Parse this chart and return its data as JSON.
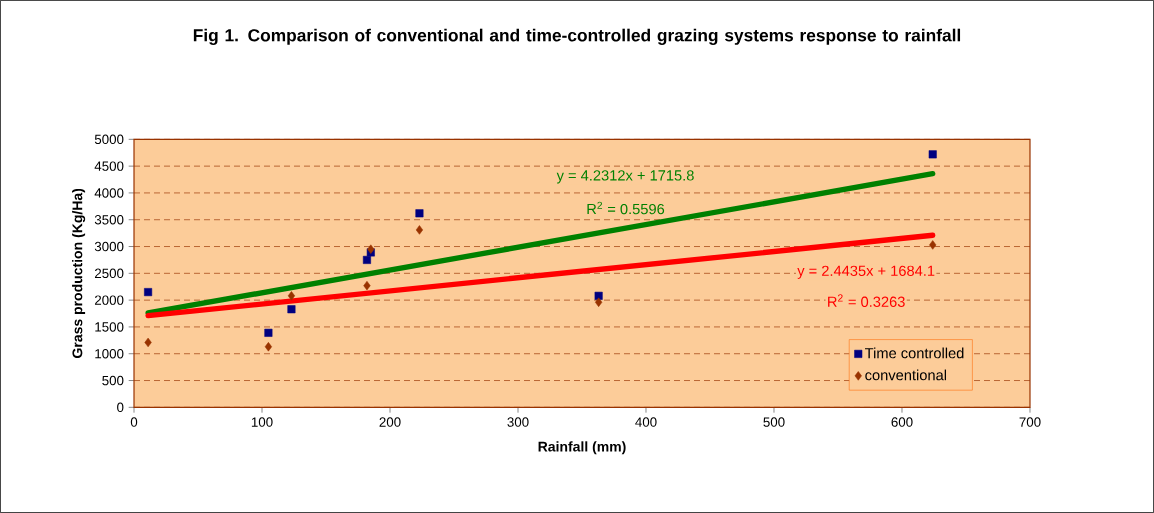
{
  "chart_data": {
    "type": "scatter",
    "title": "Fig 1.    Comparison of conventional and time-controlled grazing systems response to rainfall",
    "xlabel": "Rainfall (mm)",
    "ylabel": "Grass production (Kg/Ha)",
    "xlim": [
      0,
      700
    ],
    "xticks": [
      0,
      100,
      200,
      300,
      400,
      500,
      600,
      700
    ],
    "ylim": [
      0,
      5000
    ],
    "yticks": [
      0,
      500,
      1000,
      1500,
      2000,
      2500,
      3000,
      3500,
      4000,
      4500,
      5000
    ],
    "grid": "y",
    "legend": "bottom right",
    "series": [
      {
        "name": "Time controlled",
        "marker": "square",
        "color": "#000080",
        "x": [
          11,
          105,
          123,
          182,
          185,
          223,
          363,
          624
        ],
        "values": [
          2150,
          1390,
          1830,
          2750,
          2890,
          3620,
          2080,
          4720
        ]
      },
      {
        "name": "conventional",
        "marker": "diamond",
        "color": "#993300",
        "x": [
          11,
          105,
          123,
          182,
          185,
          223,
          363,
          624
        ],
        "values": [
          1210,
          1130,
          2080,
          2270,
          2950,
          3310,
          1960,
          3030
        ]
      },
      {
        "type": "line",
        "marker": "none",
        "color": "#008000",
        "x": [
          11,
          624
        ],
        "values": [
          1760,
          4360
        ]
      },
      {
        "type": "line",
        "marker": "none",
        "color": "#ff0000",
        "x": [
          11,
          624
        ],
        "values": [
          1710,
          3210
        ]
      }
    ],
    "annotations": [
      "y = 4.2312x + 1715.8",
      "R$^{2}$ = 0.5596",
      "y = 2.4435x + 1684.1",
      "R$^{2}$ = 0.3263"
    ]
  }
}
